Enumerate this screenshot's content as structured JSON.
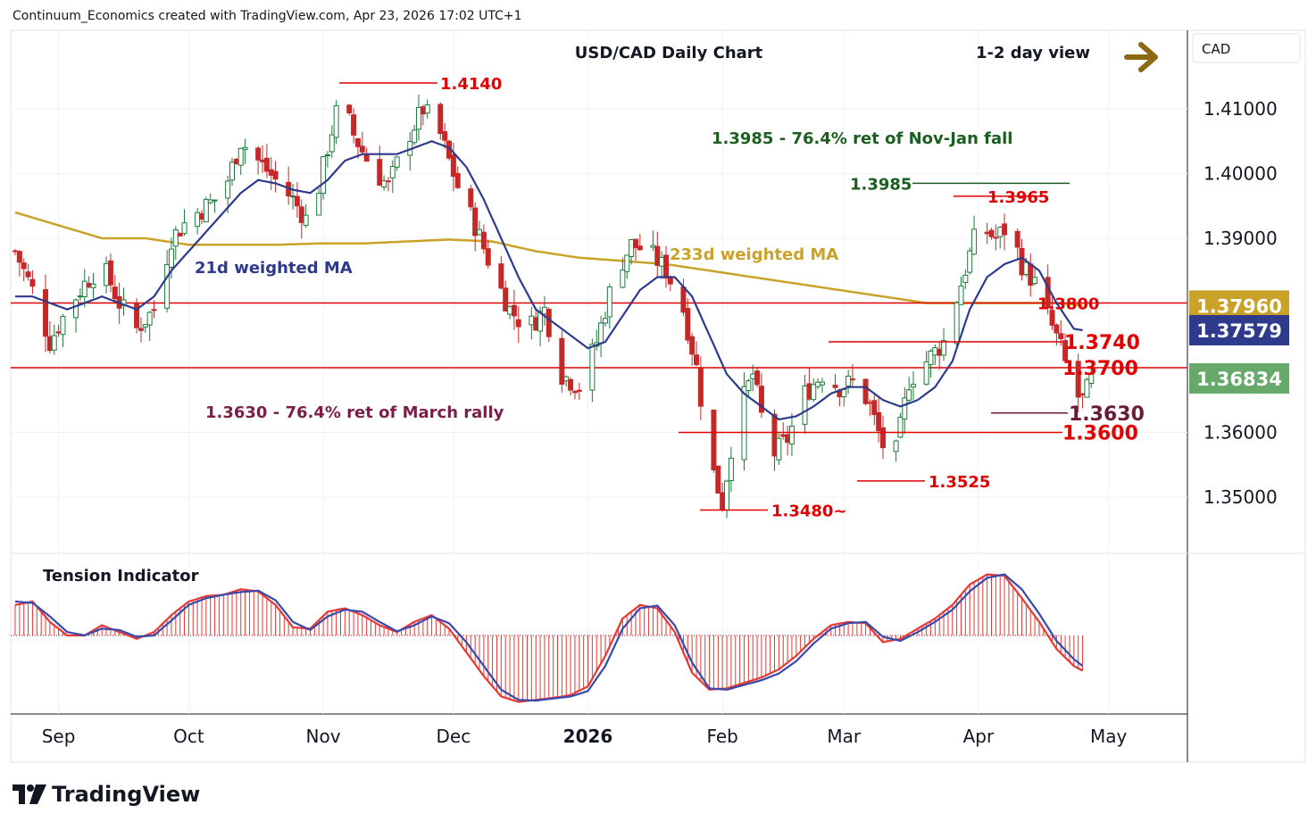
{
  "header": "Continuum_Economics created with TradingView.com, Apr 23, 2026 17:02 UTC+1",
  "brand": "TradingView",
  "chart_data": {
    "type": "candlestick",
    "title": "USD/CAD Daily Chart",
    "view_label": "1-2 day view",
    "view_direction": "sideways",
    "currency_label": "CAD",
    "y_ticks": [
      1.41,
      1.4,
      1.39,
      1.36,
      1.35
    ],
    "y_tick_labels": [
      "1.41000",
      "1.40000",
      "1.39000",
      "1.36000",
      "1.35000"
    ],
    "ylim": [
      1.342,
      1.421
    ],
    "x_ticks": [
      {
        "label": "Sep",
        "i": 10
      },
      {
        "label": "Oct",
        "i": 40
      },
      {
        "label": "Nov",
        "i": 71
      },
      {
        "label": "Dec",
        "i": 101
      },
      {
        "label": "2026",
        "i": 132
      },
      {
        "label": "Feb",
        "i": 163
      },
      {
        "label": "Mar",
        "i": 191
      },
      {
        "label": "Apr",
        "i": 222
      },
      {
        "label": "May",
        "i": 252
      }
    ],
    "price_badges": [
      {
        "label": "1.37960",
        "value": 1.3796,
        "color": "#c9a227"
      },
      {
        "label": "1.37579",
        "value": 1.37579,
        "color": "#2e3a8c"
      },
      {
        "label": "1.36834",
        "value": 1.36834,
        "color": "#66a96a"
      }
    ],
    "horizontal_levels": [
      {
        "value": 1.38,
        "label": "1.3800",
        "color": "#e00000"
      },
      {
        "value": 1.37,
        "label": "1.3700",
        "color": "#e00000"
      }
    ],
    "annotations": [
      {
        "text": "1.4140",
        "value": 1.414,
        "color": "#e00000"
      },
      {
        "text": "1.3985",
        "value": 1.3985,
        "color": "#1b5e20"
      },
      {
        "text": "1.3965",
        "value": 1.3965,
        "color": "#e00000"
      },
      {
        "text": "1.3740",
        "value": 1.374,
        "color": "#e00000"
      },
      {
        "text": "1.3630",
        "value": 1.363,
        "color": "#6a1b3a"
      },
      {
        "text": "1.3600",
        "value": 1.36,
        "color": "#e00000"
      },
      {
        "text": "1.3525",
        "value": 1.3525,
        "color": "#e00000"
      },
      {
        "text": "1.3480~",
        "value": 1.348,
        "color": "#e00000"
      },
      {
        "text": "1.3985 - 76.4% ret of Nov-Jan fall",
        "color": "#1b5e20"
      },
      {
        "text": "1.3630 - 76.4% ret of March rally",
        "color": "#7b1f4a"
      },
      {
        "text": "21d weighted MA",
        "color": "#2e3a8c"
      },
      {
        "text": "233d weighted MA",
        "color": "#c9a227"
      }
    ],
    "close_path": [
      [
        0,
        1.388
      ],
      [
        4,
        1.382
      ],
      [
        8,
        1.374
      ],
      [
        12,
        1.379
      ],
      [
        16,
        1.383
      ],
      [
        20,
        1.386
      ],
      [
        24,
        1.38
      ],
      [
        28,
        1.376
      ],
      [
        32,
        1.379
      ],
      [
        36,
        1.39
      ],
      [
        40,
        1.393
      ],
      [
        44,
        1.395
      ],
      [
        48,
        1.397
      ],
      [
        52,
        1.405
      ],
      [
        56,
        1.402
      ],
      [
        60,
        1.399
      ],
      [
        64,
        1.396
      ],
      [
        68,
        1.392
      ],
      [
        72,
        1.404
      ],
      [
        75,
        1.412
      ],
      [
        78,
        1.406
      ],
      [
        82,
        1.401
      ],
      [
        86,
        1.398
      ],
      [
        90,
        1.405
      ],
      [
        94,
        1.41
      ],
      [
        98,
        1.406
      ],
      [
        102,
        1.398
      ],
      [
        106,
        1.392
      ],
      [
        110,
        1.385
      ],
      [
        114,
        1.379
      ],
      [
        118,
        1.376
      ],
      [
        122,
        1.379
      ],
      [
        126,
        1.369
      ],
      [
        130,
        1.367
      ],
      [
        134,
        1.374
      ],
      [
        138,
        1.384
      ],
      [
        142,
        1.389
      ],
      [
        146,
        1.388
      ],
      [
        150,
        1.385
      ],
      [
        154,
        1.379
      ],
      [
        157,
        1.37
      ],
      [
        160,
        1.356
      ],
      [
        163,
        1.349
      ],
      [
        166,
        1.362
      ],
      [
        170,
        1.369
      ],
      [
        174,
        1.356
      ],
      [
        178,
        1.359
      ],
      [
        182,
        1.366
      ],
      [
        186,
        1.369
      ],
      [
        190,
        1.367
      ],
      [
        194,
        1.368
      ],
      [
        197,
        1.364
      ],
      [
        200,
        1.358
      ],
      [
        203,
        1.357
      ],
      [
        206,
        1.368
      ],
      [
        210,
        1.371
      ],
      [
        214,
        1.374
      ],
      [
        218,
        1.383
      ],
      [
        222,
        1.392
      ],
      [
        226,
        1.39
      ],
      [
        229,
        1.392
      ],
      [
        232,
        1.386
      ],
      [
        235,
        1.383
      ],
      [
        238,
        1.378
      ],
      [
        241,
        1.373
      ],
      [
        244,
        1.366
      ],
      [
        246,
        1.365
      ],
      [
        248,
        1.368
      ]
    ],
    "ma21_path": [
      [
        0,
        1.381
      ],
      [
        4,
        1.381
      ],
      [
        8,
        1.38
      ],
      [
        12,
        1.379
      ],
      [
        16,
        1.38
      ],
      [
        20,
        1.381
      ],
      [
        24,
        1.38
      ],
      [
        28,
        1.379
      ],
      [
        32,
        1.381
      ],
      [
        36,
        1.385
      ],
      [
        40,
        1.388
      ],
      [
        44,
        1.391
      ],
      [
        48,
        1.394
      ],
      [
        52,
        1.397
      ],
      [
        56,
        1.399
      ],
      [
        60,
        1.3985
      ],
      [
        64,
        1.3975
      ],
      [
        68,
        1.397
      ],
      [
        72,
        1.399
      ],
      [
        76,
        1.402
      ],
      [
        80,
        1.403
      ],
      [
        84,
        1.403
      ],
      [
        88,
        1.403
      ],
      [
        92,
        1.404
      ],
      [
        96,
        1.405
      ],
      [
        100,
        1.404
      ],
      [
        104,
        1.401
      ],
      [
        108,
        1.396
      ],
      [
        112,
        1.39
      ],
      [
        116,
        1.384
      ],
      [
        120,
        1.379
      ],
      [
        124,
        1.377
      ],
      [
        128,
        1.375
      ],
      [
        132,
        1.373
      ],
      [
        136,
        1.374
      ],
      [
        140,
        1.378
      ],
      [
        144,
        1.382
      ],
      [
        148,
        1.384
      ],
      [
        152,
        1.384
      ],
      [
        156,
        1.381
      ],
      [
        160,
        1.375
      ],
      [
        164,
        1.369
      ],
      [
        168,
        1.366
      ],
      [
        172,
        1.364
      ],
      [
        176,
        1.362
      ],
      [
        180,
        1.3625
      ],
      [
        184,
        1.364
      ],
      [
        188,
        1.366
      ],
      [
        192,
        1.367
      ],
      [
        196,
        1.367
      ],
      [
        200,
        1.365
      ],
      [
        204,
        1.364
      ],
      [
        208,
        1.365
      ],
      [
        212,
        1.367
      ],
      [
        216,
        1.371
      ],
      [
        220,
        1.379
      ],
      [
        224,
        1.384
      ],
      [
        228,
        1.386
      ],
      [
        232,
        1.387
      ],
      [
        236,
        1.385
      ],
      [
        240,
        1.38
      ],
      [
        244,
        1.376
      ],
      [
        246,
        1.3758
      ]
    ],
    "ma233_path": [
      [
        0,
        1.394
      ],
      [
        10,
        1.392
      ],
      [
        20,
        1.39
      ],
      [
        30,
        1.39
      ],
      [
        40,
        1.389
      ],
      [
        50,
        1.389
      ],
      [
        60,
        1.389
      ],
      [
        70,
        1.3892
      ],
      [
        80,
        1.3892
      ],
      [
        90,
        1.3895
      ],
      [
        100,
        1.3898
      ],
      [
        110,
        1.3895
      ],
      [
        120,
        1.388
      ],
      [
        130,
        1.387
      ],
      [
        140,
        1.3865
      ],
      [
        150,
        1.386
      ],
      [
        160,
        1.385
      ],
      [
        170,
        1.384
      ],
      [
        180,
        1.383
      ],
      [
        190,
        1.382
      ],
      [
        200,
        1.381
      ],
      [
        210,
        1.38
      ],
      [
        220,
        1.38
      ],
      [
        230,
        1.38
      ],
      [
        240,
        1.38
      ],
      [
        246,
        1.3796
      ]
    ],
    "tension_indicator": {
      "title": "Tension Indicator",
      "range": [
        -1,
        1
      ],
      "values": [
        [
          0,
          0.45
        ],
        [
          4,
          0.5
        ],
        [
          8,
          0.2
        ],
        [
          12,
          0.0
        ],
        [
          16,
          0.0
        ],
        [
          20,
          0.15
        ],
        [
          24,
          0.05
        ],
        [
          28,
          -0.05
        ],
        [
          32,
          0.05
        ],
        [
          36,
          0.3
        ],
        [
          40,
          0.5
        ],
        [
          44,
          0.58
        ],
        [
          48,
          0.6
        ],
        [
          52,
          0.68
        ],
        [
          56,
          0.65
        ],
        [
          60,
          0.45
        ],
        [
          64,
          0.12
        ],
        [
          68,
          0.1
        ],
        [
          72,
          0.35
        ],
        [
          76,
          0.4
        ],
        [
          80,
          0.3
        ],
        [
          84,
          0.15
        ],
        [
          88,
          0.05
        ],
        [
          92,
          0.2
        ],
        [
          96,
          0.3
        ],
        [
          100,
          0.1
        ],
        [
          104,
          -0.25
        ],
        [
          108,
          -0.6
        ],
        [
          112,
          -0.9
        ],
        [
          116,
          -0.98
        ],
        [
          120,
          -0.95
        ],
        [
          124,
          -0.92
        ],
        [
          128,
          -0.88
        ],
        [
          132,
          -0.75
        ],
        [
          136,
          -0.3
        ],
        [
          140,
          0.25
        ],
        [
          144,
          0.45
        ],
        [
          148,
          0.4
        ],
        [
          152,
          0.05
        ],
        [
          156,
          -0.55
        ],
        [
          160,
          -0.8
        ],
        [
          164,
          -0.78
        ],
        [
          168,
          -0.7
        ],
        [
          172,
          -0.62
        ],
        [
          176,
          -0.5
        ],
        [
          180,
          -0.3
        ],
        [
          184,
          -0.05
        ],
        [
          188,
          0.15
        ],
        [
          192,
          0.2
        ],
        [
          196,
          0.18
        ],
        [
          200,
          -0.1
        ],
        [
          204,
          -0.05
        ],
        [
          208,
          0.1
        ],
        [
          212,
          0.25
        ],
        [
          216,
          0.45
        ],
        [
          220,
          0.75
        ],
        [
          224,
          0.9
        ],
        [
          228,
          0.88
        ],
        [
          232,
          0.55
        ],
        [
          236,
          0.2
        ],
        [
          240,
          -0.2
        ],
        [
          244,
          -0.45
        ],
        [
          246,
          -0.52
        ]
      ],
      "signal": [
        [
          0,
          0.5
        ],
        [
          4,
          0.48
        ],
        [
          8,
          0.28
        ],
        [
          12,
          0.05
        ],
        [
          16,
          0.0
        ],
        [
          20,
          0.1
        ],
        [
          24,
          0.08
        ],
        [
          28,
          -0.02
        ],
        [
          32,
          0.0
        ],
        [
          36,
          0.22
        ],
        [
          40,
          0.45
        ],
        [
          44,
          0.55
        ],
        [
          48,
          0.6
        ],
        [
          52,
          0.64
        ],
        [
          56,
          0.66
        ],
        [
          60,
          0.52
        ],
        [
          64,
          0.2
        ],
        [
          68,
          0.08
        ],
        [
          72,
          0.28
        ],
        [
          76,
          0.38
        ],
        [
          80,
          0.35
        ],
        [
          84,
          0.2
        ],
        [
          88,
          0.06
        ],
        [
          92,
          0.15
        ],
        [
          96,
          0.28
        ],
        [
          100,
          0.18
        ],
        [
          104,
          -0.1
        ],
        [
          108,
          -0.45
        ],
        [
          112,
          -0.8
        ],
        [
          116,
          -0.95
        ],
        [
          120,
          -0.96
        ],
        [
          124,
          -0.93
        ],
        [
          128,
          -0.9
        ],
        [
          132,
          -0.82
        ],
        [
          136,
          -0.45
        ],
        [
          140,
          0.1
        ],
        [
          144,
          0.4
        ],
        [
          148,
          0.44
        ],
        [
          152,
          0.15
        ],
        [
          156,
          -0.4
        ],
        [
          160,
          -0.78
        ],
        [
          164,
          -0.8
        ],
        [
          168,
          -0.73
        ],
        [
          172,
          -0.66
        ],
        [
          176,
          -0.56
        ],
        [
          180,
          -0.38
        ],
        [
          184,
          -0.12
        ],
        [
          188,
          0.1
        ],
        [
          192,
          0.18
        ],
        [
          196,
          0.2
        ],
        [
          200,
          -0.02
        ],
        [
          204,
          -0.08
        ],
        [
          208,
          0.05
        ],
        [
          212,
          0.2
        ],
        [
          216,
          0.38
        ],
        [
          220,
          0.65
        ],
        [
          224,
          0.85
        ],
        [
          228,
          0.9
        ],
        [
          232,
          0.68
        ],
        [
          236,
          0.32
        ],
        [
          240,
          -0.08
        ],
        [
          244,
          -0.35
        ],
        [
          246,
          -0.45
        ]
      ]
    }
  }
}
